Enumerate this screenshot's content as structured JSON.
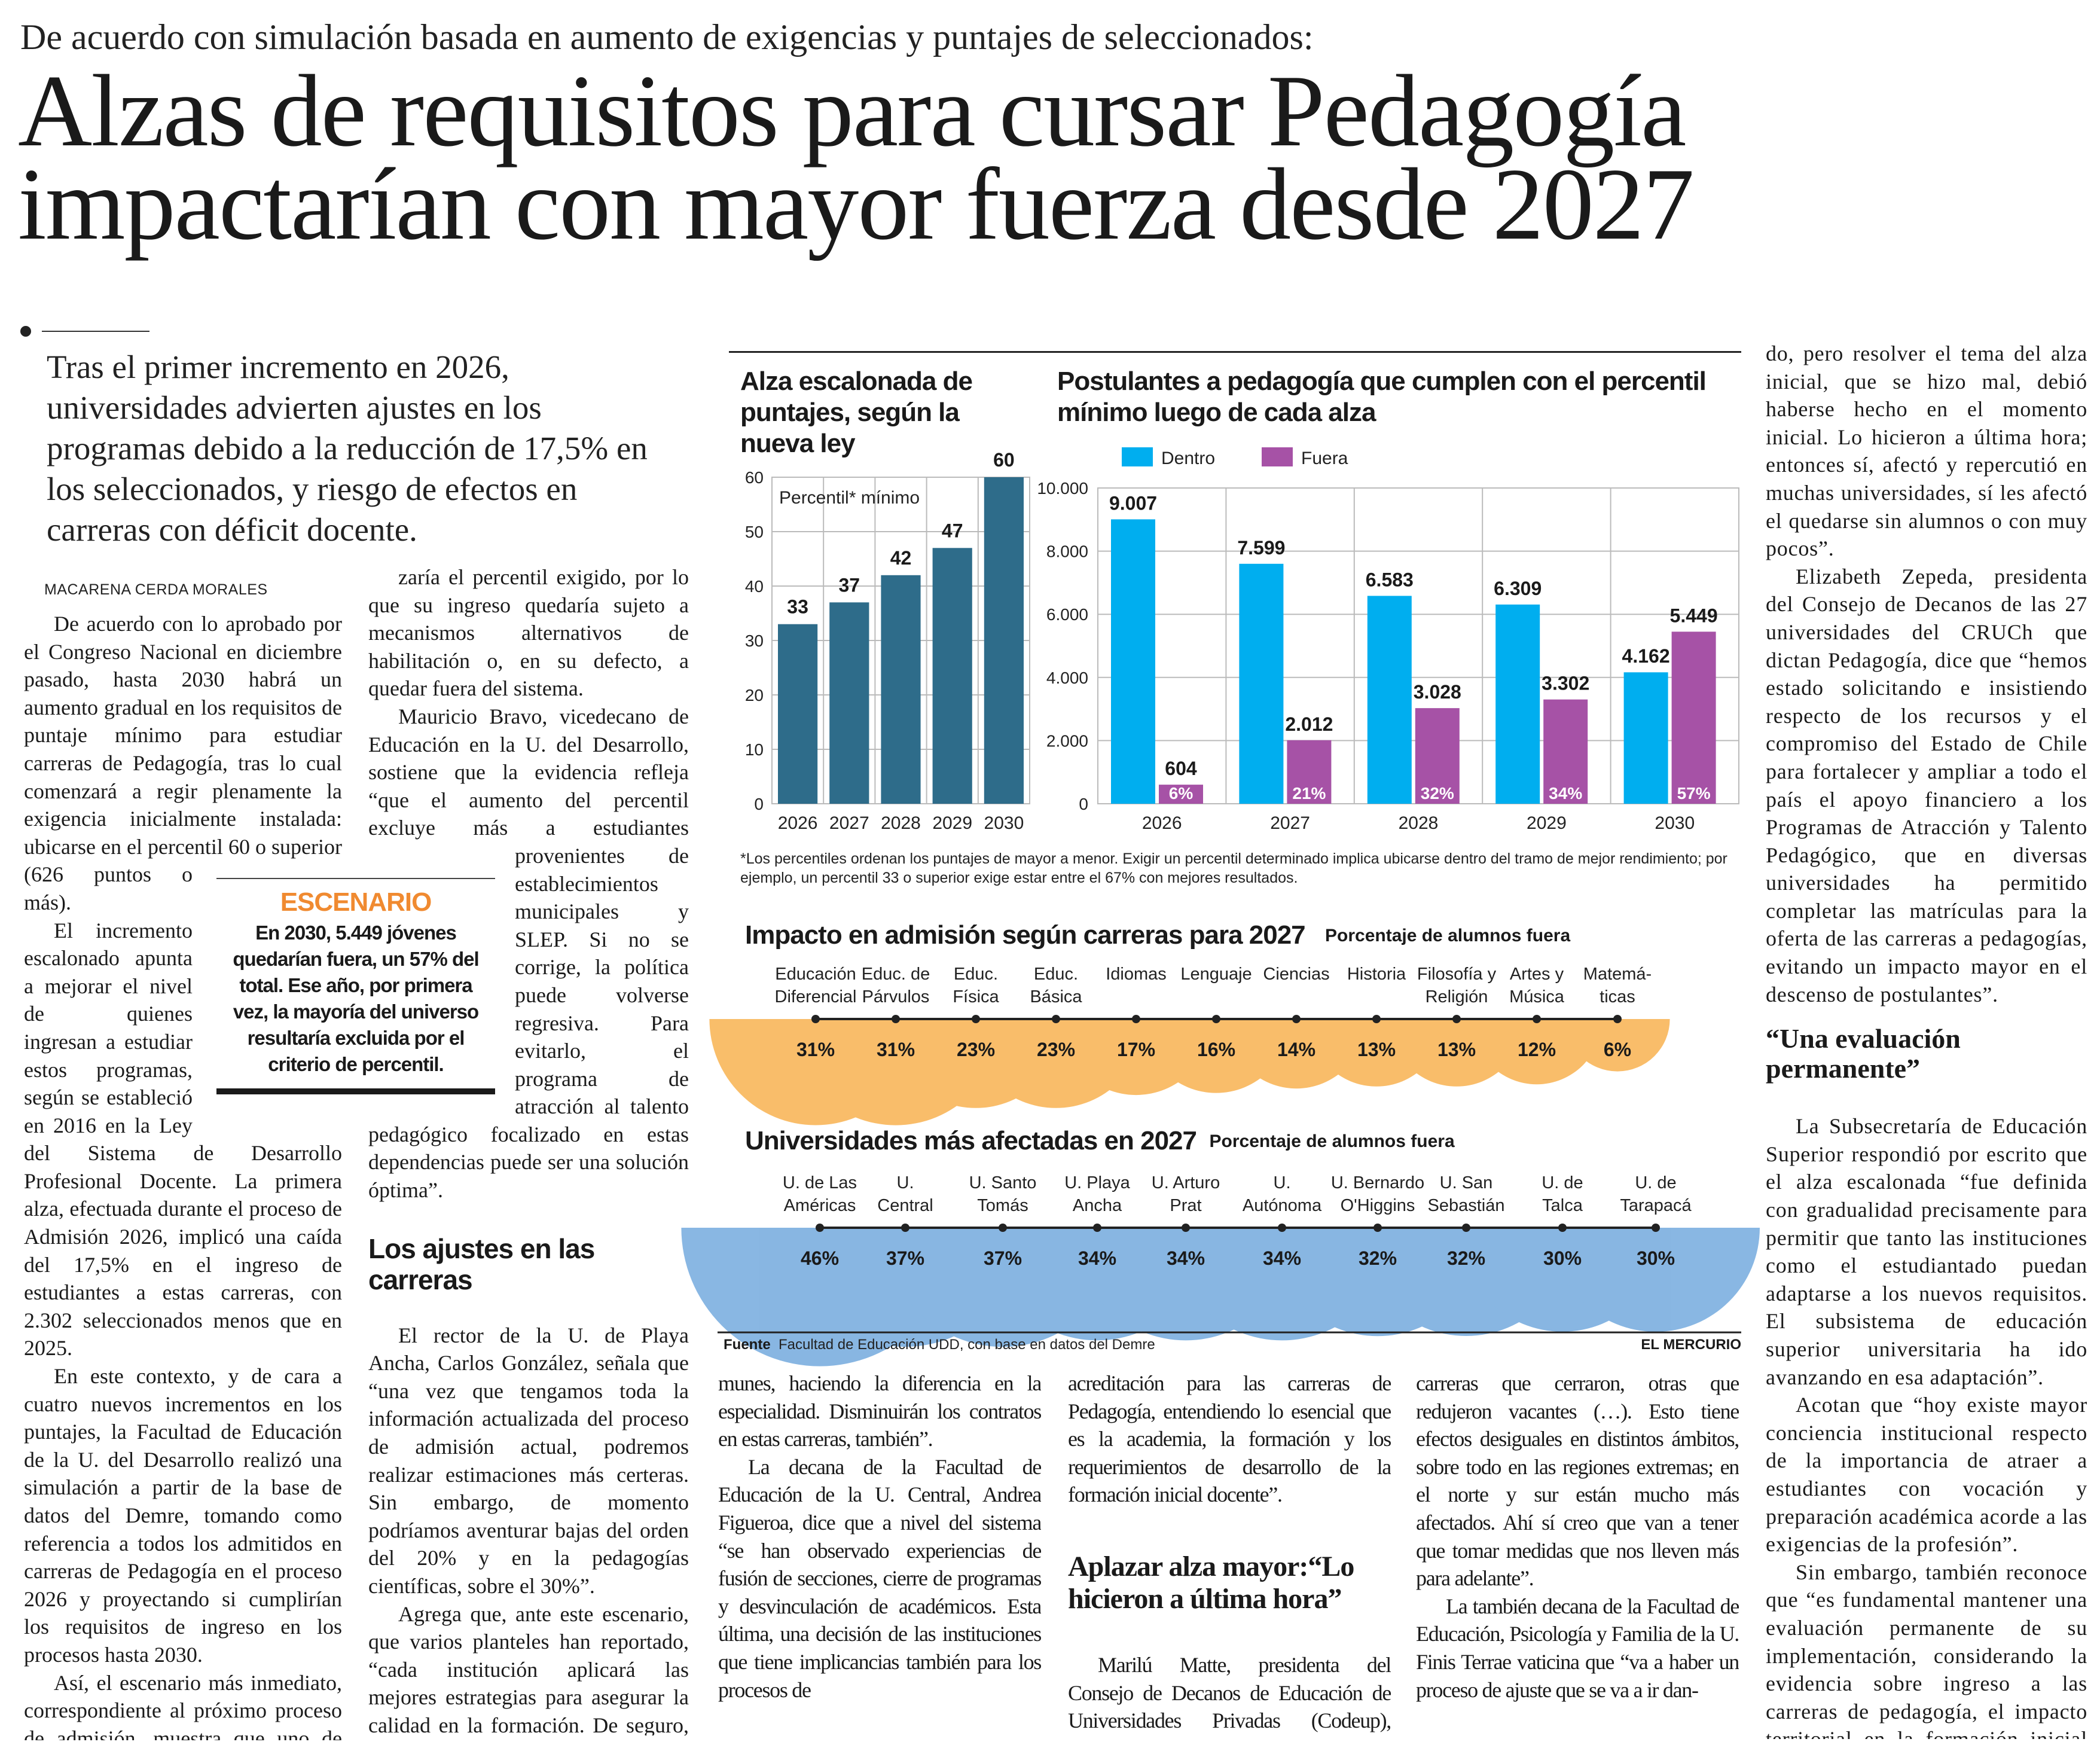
{
  "kicker": "De acuerdo con simulación basada en aumento de exigencias y puntajes de seleccionados:",
  "headline": [
    "Alzas de requisitos para cursar Pedagogía",
    "impactarían con mayor fuerza desde 2027"
  ],
  "deck": "Tras el primer incremento en 2026, universidades advierten ajustes en los programas debido a la reducción de 17,5% en los seleccionados, y riesgo de efectos en carreras con déficit docente.",
  "byline": "MACARENA CERDA MORALES",
  "escenario": {
    "title": "ESCENARIO",
    "text": "En 2030, 5.449 jóvenes quedarían fuera, un 57% del total. Ese año, por primera vez, la mayoría del universo resultaría excluida por el criterio de percentil.",
    "accent": "#F08A30"
  },
  "columns": {
    "c1": [
      {
        "p": "De acuerdo con lo aprobado por el Congreso Nacional en diciembre pasado, hasta 2030 habrá un aumento gradual en los requisitos de puntaje mínimo para estudiar carreras de Pedagogía, tras lo cual comenzará a regir plenamente la exigencia inicialmente instalada: ubicarse en el percentil 60 o superior (626 puntos o más)."
      },
      {
        "p": "El incremento escalonado apunta a mejorar el nivel de quienes ingresan a estudiar estos programas, según se estableció en 2016 en la Ley del Sistema de Desarrollo Profesional Docente. La primera alza, efectuada durante el proceso de Admisión 2026, implicó una caída del 17,5% en el ingreso de estudiantes a estas carreras, con 2.302 seleccionados menos que en 2025."
      },
      {
        "p": "En este contexto, y de cara a cuatro nuevos incrementos en los puntajes, la Facultad de Educación de la U. del Desarrollo realizó una simulación a partir de la base de datos del Demre, tomando como referencia a todos los admitidos en carreras de Pedagogía en el proceso 2026 y proyectando si cumplirían los requisitos de ingreso en los procesos hasta 2030."
      },
      {
        "p": "Así, el escenario más inmediato, correspondiente al próximo proceso de admisión, muestra que uno de cada cinco no alcan-"
      }
    ],
    "c2": [
      {
        "p": "zaría el percentil exigido, por lo que su ingreso quedaría sujeto a mecanismos alternativos de habilitación o, en su defecto, a quedar fuera del sistema."
      },
      {
        "p": "Mauricio Bravo, vicedecano de Educación en la U. del Desarrollo, sostiene que la evidencia refleja “que el aumento del percentil excluye más a estudiantes provenientes de establecimientos municipales y SLEP. Si no se corrige, la política puede volverse regresiva. Para evitarlo, el programa de atracción al talento pedagógico focalizado en estas dependencias puede ser una solución óptima”."
      },
      {
        "h": "Los ajustes en las carreras"
      },
      {
        "p": "El rector de la U. de Playa Ancha, Carlos González, señala que “una vez que tengamos toda la información actualizada del proceso de admisión actual, podremos realizar estimaciones más certeras. Sin embargo, de momento podríamos aventurar bajas del orden del 20% y en la pedagogías científicas, sobre el 30%”."
      },
      {
        "p": "Agrega que, ante este escenario, que varios planteles han reportado, “cada institución aplicará las mejores estrategias para asegurar la calidad en la formación. De seguro, los cursos pequeños juntarán a los estudiantes en las asignaturas co-"
      }
    ],
    "c3": [
      {
        "p": "munes, haciendo la diferencia en la especialidad. Disminuirán los contratos en estas carreras, también”."
      },
      {
        "p": "La decana de la Facultad de Educación de la U. Central, Andrea Figueroa, dice que a nivel del sistema “se han observado experiencias de fusión de secciones, cierre de programas y desvinculación de académicos. Esta última, una decisión de las instituciones que tiene implicancias también para los procesos de"
      }
    ],
    "c4": [
      {
        "p": "acreditación para las carreras de Pedagogía, entendiendo lo esencial que es la academia, la formación y los requerimientos de desarrollo de la formación inicial docente”."
      },
      {
        "h": "Aplazar alza mayor:“Lo hicieron a última hora”"
      },
      {
        "p": "Marilú Matte, presidenta del Consejo de Decanos de Educación de Universidades Privadas (Codeup), manifiesta que “hay"
      }
    ],
    "c5": [
      {
        "p": "carreras que cerraron, otras que redujeron vacantes (…). Esto tiene efectos desiguales en distintos ámbitos, sobre todo en las regiones extremas; en el norte y sur están mucho más afectados. Ahí sí creo que van a tener que tomar medidas que nos lleven más para adelante”."
      },
      {
        "p": "La también decana de la Facultad de Educación, Psicología y Familia de la U. Finis Terrae vaticina que “va a haber un proceso de ajuste que se va a ir dan-"
      }
    ],
    "c6": [
      {
        "p": "do, pero resolver el tema del alza inicial, que se hizo mal, debió haberse hecho en el momento inicial. Lo hicieron a última hora; entonces sí, afectó y repercutió en muchas universidades, sí les afectó el quedarse sin alumnos o con muy pocos”."
      },
      {
        "p": "Elizabeth Zepeda, presidenta del Consejo de Decanos de las 27 universidades del CRUCh que dictan Pedagogía, dice que “hemos estado solicitando e insistiendo respecto de los recursos y el compromiso del Estado de Chile para fortalecer y ampliar a todo el país el apoyo financiero a los Programas de Atracción y Talento Pedagógico, que en diversas universidades ha permitido completar las matrículas para la oferta de las carreras a pedagogías, evitando un impacto mayor en el descenso de postulantes”."
      },
      {
        "h": "“Una evaluación permanente”"
      },
      {
        "p": "La Subsecretaría de Educación Superior respondió por escrito que el alza escalonada “fue definida con gradualidad precisamente para permitir que tanto las instituciones como el estudiantado puedan adaptarse a los nuevos requisitos. El subsistema de educación superior universitaria ha ido avanzando en esa adaptación”."
      },
      {
        "p": "Acotan que “hoy existe mayor conciencia institucional respecto de la importancia de atraer a estudiantes con vocación y preparación académica acorde a las exigencias de la profesión”."
      },
      {
        "p": "Sin embargo, también reconoce que “es fundamental mantener una evaluación permanente de su implementación, considerando la evidencia sobre ingreso a las carreras de pedagogía, el impacto territorial en la formación inicial docente y las necesidades del sistema escolar”."
      }
    ]
  },
  "footnote": "*Los percentiles ordenan los puntajes de mayor a menor. Exigir un percentil determinado implica ubicarse dentro del tramo de mejor rendimiento; por ejemplo, un percentil 33 o superior exige estar entre el 67% con mejores resultados.",
  "source": {
    "label": "Fuente",
    "text": "Facultad de Educación UDD, con base en datos del Demre",
    "credit": "EL MERCURIO"
  },
  "chart_data": [
    {
      "type": "bar",
      "title": "Alza escalonada de puntajes, según la nueva ley",
      "ylabel": "Percentil* mínimo",
      "categories": [
        "2026",
        "2027",
        "2028",
        "2029",
        "2030"
      ],
      "values": [
        33,
        37,
        42,
        47,
        60
      ],
      "value_labels": [
        "33",
        "37",
        "42",
        "47",
        "60"
      ],
      "ylim": [
        0,
        60
      ],
      "yticks": [
        "0",
        "10",
        "20",
        "30",
        "40",
        "50",
        "60"
      ],
      "grid": true,
      "color": "#2E6C8A"
    },
    {
      "type": "bar",
      "title": "Postulantes a pedagogía que cumplen con el percentil mínimo luego de cada alza",
      "categories": [
        "2026",
        "2027",
        "2028",
        "2029",
        "2030"
      ],
      "series": [
        {
          "name": "Dentro",
          "values": [
            9007,
            7599,
            6583,
            6309,
            4162
          ],
          "value_labels": [
            "9.007",
            "7.599",
            "6.583",
            "6.309",
            "4.162"
          ],
          "color": "#00AEEF"
        },
        {
          "name": "Fuera",
          "values": [
            604,
            2012,
            3028,
            3302,
            5449
          ],
          "value_labels": [
            "604",
            "2.012",
            "3.028",
            "3.302",
            "5.449"
          ],
          "pct_labels": [
            "6%",
            "21%",
            "32%",
            "34%",
            "57%"
          ],
          "color": "#A652A6"
        }
      ],
      "ylim": [
        0,
        10000
      ],
      "yticks": [
        "0",
        "2.000",
        "4.000",
        "6.000",
        "8.000",
        "10.000"
      ],
      "grid": true,
      "legend": "top-left"
    },
    {
      "type": "bubble-semicircle",
      "title": "Impacto en admisión según carreras para 2027",
      "subtitle": "Porcentaje de alumnos fuera",
      "categories": [
        [
          "Educación",
          "Diferencial"
        ],
        [
          "Educ. de",
          "Párvulos"
        ],
        [
          "Educ.",
          "Física"
        ],
        [
          "Educ.",
          "Básica"
        ],
        [
          "Idiomas",
          ""
        ],
        [
          "Lenguaje",
          ""
        ],
        [
          "Ciencias",
          ""
        ],
        [
          "Historia",
          ""
        ],
        [
          "Filosofía y",
          "Religión"
        ],
        [
          "Artes y",
          "Música"
        ],
        [
          "Matemá-",
          "ticas"
        ]
      ],
      "values": [
        31,
        31,
        23,
        23,
        17,
        16,
        14,
        13,
        13,
        12,
        6
      ],
      "value_labels": [
        "31%",
        "31%",
        "23%",
        "23%",
        "17%",
        "16%",
        "14%",
        "13%",
        "13%",
        "12%",
        "6%"
      ],
      "color": "#F7A531"
    },
    {
      "type": "bubble-semicircle",
      "title": "Universidades más afectadas en 2027",
      "subtitle": "Porcentaje de alumnos fuera",
      "categories": [
        [
          "U. de Las",
          "Américas"
        ],
        [
          "U.",
          "Central"
        ],
        [
          "U. Santo",
          "Tomás"
        ],
        [
          "U. Playa",
          "Ancha"
        ],
        [
          "U. Arturo",
          "Prat"
        ],
        [
          "U.",
          "Autónoma"
        ],
        [
          "U. Bernardo",
          "O'Higgins"
        ],
        [
          "U. San",
          "Sebastián"
        ],
        [
          "U. de",
          "Talca"
        ],
        [
          "U. de",
          "Tarapacá"
        ]
      ],
      "values": [
        46,
        37,
        37,
        34,
        34,
        34,
        32,
        32,
        30,
        30
      ],
      "value_labels": [
        "46%",
        "37%",
        "37%",
        "34%",
        "34%",
        "34%",
        "32%",
        "32%",
        "30%",
        "30%"
      ],
      "color": "#5B9BD8"
    }
  ]
}
